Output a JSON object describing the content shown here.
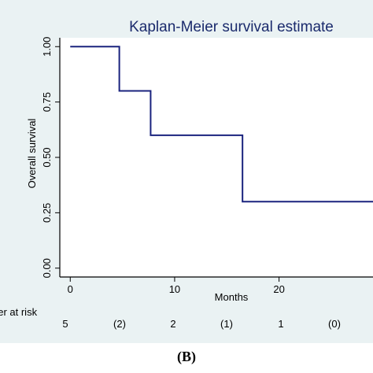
{
  "chart_data": {
    "type": "line",
    "title": "Kaplan-Meier survival estimate",
    "xlabel": "Months",
    "ylabel": "Overall survival",
    "xlim": [
      -1,
      29
    ],
    "ylim": [
      -0.04,
      1.04
    ],
    "xticks": [
      0,
      10,
      20
    ],
    "xtick_labels": [
      "0",
      "10",
      "20"
    ],
    "yticks": [
      0,
      0.25,
      0.5,
      0.75,
      1.0
    ],
    "ytick_labels": [
      "0.00",
      "0.25",
      "0.50",
      "0.75",
      "1.00"
    ],
    "grid": false,
    "series": [
      {
        "step": true,
        "color": "#1a237e",
        "x": [
          0,
          4.7,
          7.7,
          16.5,
          29
        ],
        "y": [
          1.0,
          0.8,
          0.6,
          0.3,
          0.3
        ]
      }
    ]
  },
  "risk_table": {
    "label": "ber at risk",
    "values": [
      "5",
      "(2)",
      "2",
      "(1)",
      "1",
      "(0)"
    ]
  },
  "caption": "(B)"
}
